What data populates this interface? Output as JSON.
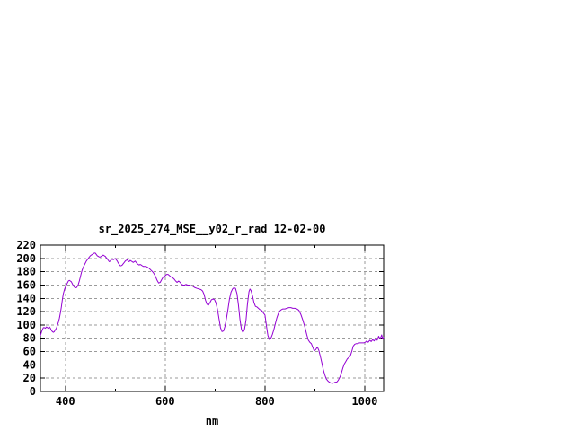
{
  "page": {
    "background": "#ffffff"
  },
  "chart_data": {
    "type": "line",
    "title": "sr_2025_274_MSE__y02_r_rad 12-02-00",
    "xlabel": "nm",
    "ylabel": "",
    "xlim": [
      350,
      1038
    ],
    "ylim": [
      0,
      220
    ],
    "xticks_major": [
      400,
      600,
      800,
      1000
    ],
    "xticks_minor": [
      500,
      700,
      900
    ],
    "yticks": [
      0,
      20,
      40,
      60,
      80,
      100,
      120,
      140,
      160,
      180,
      200,
      220
    ],
    "grid": "dashed major gridlines",
    "legend": "none",
    "line_color": "#9400D3",
    "grid_color": "#9a9a9a",
    "border_color": "#000000",
    "text_color": "#000000",
    "series": [
      {
        "name": "sr_2025_274_MSE__y02_r_rad",
        "points": [
          [
            350,
            84
          ],
          [
            352,
            89
          ],
          [
            354,
            93
          ],
          [
            356,
            96
          ],
          [
            358,
            96
          ],
          [
            360,
            95
          ],
          [
            362,
            97
          ],
          [
            364,
            96
          ],
          [
            366,
            95
          ],
          [
            368,
            97
          ],
          [
            370,
            95
          ],
          [
            372,
            92
          ],
          [
            374,
            90
          ],
          [
            376,
            89
          ],
          [
            378,
            90
          ],
          [
            380,
            93
          ],
          [
            382,
            95
          ],
          [
            384,
            100
          ],
          [
            386,
            104
          ],
          [
            388,
            110
          ],
          [
            390,
            118
          ],
          [
            392,
            127
          ],
          [
            394,
            138
          ],
          [
            396,
            147
          ],
          [
            398,
            153
          ],
          [
            400,
            157
          ],
          [
            402,
            160
          ],
          [
            404,
            163
          ],
          [
            406,
            166
          ],
          [
            408,
            167
          ],
          [
            410,
            166
          ],
          [
            412,
            165
          ],
          [
            414,
            162
          ],
          [
            416,
            159
          ],
          [
            418,
            157
          ],
          [
            420,
            156
          ],
          [
            422,
            156
          ],
          [
            424,
            158
          ],
          [
            426,
            161
          ],
          [
            428,
            166
          ],
          [
            430,
            172
          ],
          [
            432,
            178
          ],
          [
            434,
            183
          ],
          [
            436,
            187
          ],
          [
            438,
            190
          ],
          [
            440,
            193
          ],
          [
            442,
            196
          ],
          [
            444,
            198
          ],
          [
            446,
            200
          ],
          [
            448,
            202
          ],
          [
            450,
            204
          ],
          [
            452,
            205
          ],
          [
            454,
            206
          ],
          [
            456,
            207
          ],
          [
            458,
            208
          ],
          [
            460,
            208
          ],
          [
            462,
            206
          ],
          [
            464,
            204
          ],
          [
            466,
            203
          ],
          [
            468,
            202
          ],
          [
            470,
            202
          ],
          [
            472,
            203
          ],
          [
            474,
            204
          ],
          [
            476,
            205
          ],
          [
            478,
            204
          ],
          [
            480,
            203
          ],
          [
            482,
            201
          ],
          [
            484,
            199
          ],
          [
            486,
            197
          ],
          [
            488,
            195
          ],
          [
            490,
            196
          ],
          [
            492,
            198
          ],
          [
            494,
            199
          ],
          [
            496,
            198
          ],
          [
            498,
            199
          ],
          [
            500,
            200
          ],
          [
            502,
            198
          ],
          [
            504,
            196
          ],
          [
            506,
            193
          ],
          [
            508,
            191
          ],
          [
            510,
            189
          ],
          [
            512,
            189
          ],
          [
            514,
            190
          ],
          [
            516,
            192
          ],
          [
            518,
            194
          ],
          [
            520,
            196
          ],
          [
            522,
            197
          ],
          [
            524,
            198
          ],
          [
            526,
            196
          ],
          [
            528,
            195
          ],
          [
            530,
            197
          ],
          [
            532,
            196
          ],
          [
            534,
            195
          ],
          [
            536,
            194
          ],
          [
            538,
            195
          ],
          [
            540,
            196
          ],
          [
            542,
            194
          ],
          [
            544,
            192
          ],
          [
            546,
            191
          ],
          [
            548,
            190
          ],
          [
            550,
            191
          ],
          [
            552,
            190
          ],
          [
            554,
            189
          ],
          [
            556,
            188
          ],
          [
            558,
            188
          ],
          [
            560,
            188
          ],
          [
            564,
            187
          ],
          [
            568,
            185
          ],
          [
            572,
            182
          ],
          [
            576,
            179
          ],
          [
            580,
            174
          ],
          [
            584,
            167
          ],
          [
            587,
            163
          ],
          [
            590,
            164
          ],
          [
            593,
            168
          ],
          [
            596,
            172
          ],
          [
            600,
            174
          ],
          [
            603,
            176
          ],
          [
            606,
            176
          ],
          [
            609,
            174
          ],
          [
            612,
            172
          ],
          [
            615,
            171
          ],
          [
            618,
            169
          ],
          [
            621,
            166
          ],
          [
            624,
            164
          ],
          [
            627,
            166
          ],
          [
            630,
            164
          ],
          [
            633,
            161
          ],
          [
            636,
            160
          ],
          [
            639,
            160
          ],
          [
            642,
            161
          ],
          [
            645,
            160
          ],
          [
            648,
            160
          ],
          [
            652,
            159
          ],
          [
            656,
            158
          ],
          [
            660,
            156
          ],
          [
            664,
            155
          ],
          [
            668,
            154
          ],
          [
            672,
            153
          ],
          [
            675,
            151
          ],
          [
            678,
            146
          ],
          [
            681,
            137
          ],
          [
            684,
            131
          ],
          [
            687,
            130
          ],
          [
            690,
            134
          ],
          [
            693,
            138
          ],
          [
            696,
            139
          ],
          [
            699,
            138
          ],
          [
            702,
            133
          ],
          [
            705,
            123
          ],
          [
            708,
            109
          ],
          [
            711,
            96
          ],
          [
            714,
            90
          ],
          [
            717,
            91
          ],
          [
            720,
            98
          ],
          [
            723,
            110
          ],
          [
            726,
            124
          ],
          [
            729,
            139
          ],
          [
            732,
            149
          ],
          [
            735,
            154
          ],
          [
            738,
            156
          ],
          [
            741,
            155
          ],
          [
            744,
            147
          ],
          [
            747,
            130
          ],
          [
            750,
            108
          ],
          [
            753,
            93
          ],
          [
            756,
            89
          ],
          [
            759,
            93
          ],
          [
            762,
            107
          ],
          [
            765,
            131
          ],
          [
            768,
            150
          ],
          [
            770,
            154
          ],
          [
            772,
            152
          ],
          [
            775,
            144
          ],
          [
            778,
            134
          ],
          [
            781,
            128
          ],
          [
            784,
            127
          ],
          [
            787,
            125
          ],
          [
            790,
            123
          ],
          [
            793,
            122
          ],
          [
            796,
            119
          ],
          [
            800,
            115
          ],
          [
            803,
            99
          ],
          [
            806,
            84
          ],
          [
            809,
            78
          ],
          [
            812,
            80
          ],
          [
            815,
            86
          ],
          [
            818,
            93
          ],
          [
            821,
            102
          ],
          [
            824,
            111
          ],
          [
            827,
            117
          ],
          [
            830,
            121
          ],
          [
            833,
            123
          ],
          [
            836,
            124
          ],
          [
            840,
            124
          ],
          [
            844,
            125
          ],
          [
            848,
            126
          ],
          [
            852,
            126
          ],
          [
            856,
            125
          ],
          [
            860,
            125
          ],
          [
            864,
            124
          ],
          [
            868,
            122
          ],
          [
            872,
            116
          ],
          [
            876,
            107
          ],
          [
            880,
            97
          ],
          [
            884,
            85
          ],
          [
            887,
            77
          ],
          [
            890,
            74
          ],
          [
            893,
            72
          ],
          [
            896,
            66
          ],
          [
            899,
            61
          ],
          [
            902,
            63
          ],
          [
            905,
            67
          ],
          [
            908,
            62
          ],
          [
            911,
            53
          ],
          [
            914,
            43
          ],
          [
            917,
            33
          ],
          [
            920,
            25
          ],
          [
            923,
            19
          ],
          [
            926,
            16
          ],
          [
            929,
            14
          ],
          [
            932,
            13
          ],
          [
            935,
            12
          ],
          [
            938,
            13
          ],
          [
            941,
            14
          ],
          [
            944,
            14
          ],
          [
            947,
            17
          ],
          [
            950,
            21
          ],
          [
            953,
            27
          ],
          [
            956,
            35
          ],
          [
            959,
            41
          ],
          [
            962,
            45
          ],
          [
            965,
            49
          ],
          [
            968,
            51
          ],
          [
            971,
            53
          ],
          [
            974,
            60
          ],
          [
            977,
            68
          ],
          [
            980,
            71
          ],
          [
            983,
            72
          ],
          [
            986,
            72
          ],
          [
            989,
            73
          ],
          [
            992,
            73
          ],
          [
            995,
            73
          ],
          [
            998,
            73
          ],
          [
            1001,
            74
          ],
          [
            1004,
            76
          ],
          [
            1007,
            74
          ],
          [
            1010,
            77
          ],
          [
            1013,
            75
          ],
          [
            1016,
            78
          ],
          [
            1019,
            76
          ],
          [
            1022,
            80
          ],
          [
            1025,
            77
          ],
          [
            1028,
            83
          ],
          [
            1031,
            79
          ],
          [
            1034,
            85
          ],
          [
            1036,
            79
          ],
          [
            1038,
            82
          ]
        ]
      }
    ]
  }
}
